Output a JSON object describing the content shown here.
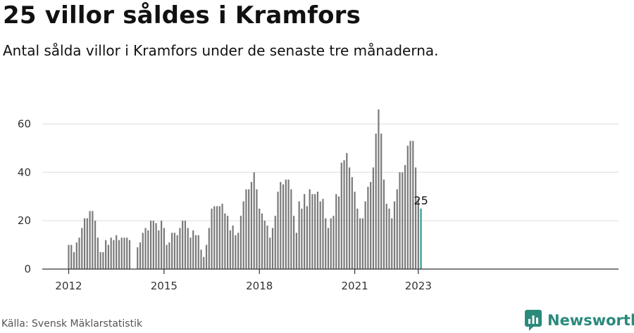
{
  "header": {
    "title": "25 villor såldes i Kramfors",
    "subtitle": "Antal sålda villor i Kramfors under de senaste tre månaderna."
  },
  "footer": {
    "source": "Källa: Svensk Mäklarstatistik",
    "brand": "Newsworthy"
  },
  "colors": {
    "bar": "#7a7a7a",
    "highlight": "#2a9d8f",
    "grid": "#dddddd",
    "axis": "#333333",
    "brand": "#2a8a7c"
  },
  "chart_data": {
    "type": "bar",
    "title": "",
    "xlabel": "",
    "ylabel": "",
    "start": "2012-01",
    "x_ticks": [
      "2012",
      "2015",
      "2018",
      "2021",
      "2023"
    ],
    "y_ticks": [
      0,
      20,
      40,
      60
    ],
    "ylim": [
      0,
      70
    ],
    "grid": true,
    "values": [
      10,
      10,
      7,
      11,
      13,
      17,
      21,
      21,
      24,
      24,
      20,
      13,
      7,
      7,
      12,
      10,
      13,
      12,
      14,
      12,
      13,
      13,
      13,
      12,
      null,
      null,
      9,
      11,
      15,
      17,
      16,
      20,
      20,
      19,
      16,
      20,
      17,
      10,
      11,
      15,
      15,
      14,
      17,
      20,
      20,
      17,
      13,
      16,
      14,
      14,
      8,
      5,
      10,
      17,
      25,
      26,
      26,
      26,
      27,
      23,
      22,
      16,
      18,
      14,
      15,
      22,
      28,
      33,
      33,
      36,
      40,
      33,
      25,
      23,
      20,
      18,
      13,
      17,
      22,
      32,
      36,
      35,
      37,
      37,
      33,
      22,
      15,
      28,
      25,
      31,
      26,
      33,
      31,
      31,
      32,
      28,
      29,
      21,
      17,
      21,
      22,
      31,
      30,
      44,
      45,
      48,
      42,
      38,
      32,
      25,
      21,
      21,
      28,
      34,
      36,
      42,
      56,
      66,
      56,
      37,
      27,
      25,
      21,
      28,
      33,
      40,
      40,
      43,
      51,
      53,
      53,
      42,
      29,
      25
    ],
    "highlight_last": true,
    "annotation": {
      "label": "25"
    }
  }
}
